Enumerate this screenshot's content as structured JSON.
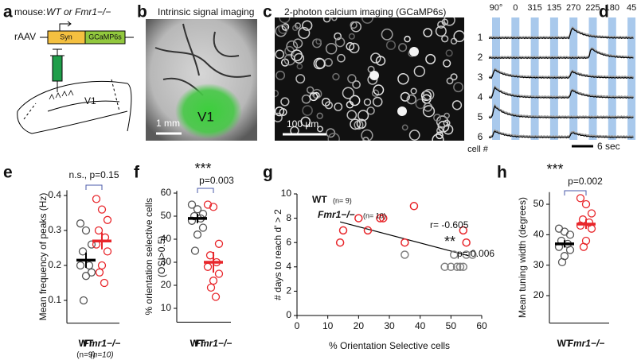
{
  "panel_labels": [
    "a",
    "b",
    "c",
    "d",
    "e",
    "f",
    "g",
    "h"
  ],
  "panel_a": {
    "mouse": "mouse:",
    "genotypes": "WT or Fmr1−/−",
    "vector": "rAAV",
    "promoter": "Syn",
    "gene": "GCaMP6s",
    "area": "V1"
  },
  "panel_b": {
    "title": "Intrinsic signal imaging",
    "scale": "1 mm",
    "area": "V1"
  },
  "panel_c": {
    "title": "2-photon calcium imaging (GCaMP6s)",
    "scale": "100 µm"
  },
  "panel_d": {
    "directions": [
      "90°",
      "0",
      "315",
      "135",
      "270",
      "225",
      "180",
      "45"
    ],
    "cells": [
      "1",
      "2",
      "3",
      "4",
      "5",
      "6"
    ],
    "cell_axis": "cell #",
    "scale": "6 sec"
  },
  "chart_data": [
    {
      "type": "dotplot",
      "ylabel": [
        "Mean frequency of peaks (Hz)"
      ],
      "ylim": [
        0.035,
        0.415
      ],
      "yticks": [
        0.1,
        0.2,
        0.3,
        0.4
      ],
      "categories": [
        "WT",
        "Fmr1−/−"
      ],
      "category_notes": [
        "(n=9)",
        "(n=10)"
      ],
      "annotation": "n.s., p=0.15",
      "groups": [
        {
          "color": "#555555",
          "values": [
            0.32,
            0.3,
            0.26,
            0.24,
            0.2,
            0.2,
            0.18,
            0.17,
            0.1
          ],
          "mean": 0.215,
          "sem": 0.022
        },
        {
          "color": "#e8262b",
          "values": [
            0.39,
            0.36,
            0.33,
            0.3,
            0.28,
            0.26,
            0.24,
            0.2,
            0.18,
            0.15
          ],
          "mean": 0.27,
          "sem": 0.024
        }
      ]
    },
    {
      "type": "dotplot",
      "ylabel": [
        "% orientation selective cells",
        "(OSI>0.5)"
      ],
      "ylim": [
        4,
        61
      ],
      "yticks": [
        10,
        20,
        30,
        40,
        50,
        60
      ],
      "categories": [
        "WT",
        "Fmr1−/−"
      ],
      "stars": "***",
      "annotation": "p=0.003",
      "groups": [
        {
          "color": "#555555",
          "values": [
            55,
            53,
            51,
            50,
            49,
            48,
            45,
            42,
            35
          ],
          "mean": 49,
          "sem": 2
        },
        {
          "color": "#e8262b",
          "values": [
            55,
            54,
            38,
            33,
            30,
            28,
            25,
            22,
            19,
            15
          ],
          "mean": 30,
          "sem": 4.5
        }
      ]
    },
    {
      "type": "scatter",
      "xlabel": "% Orientation Selective cells",
      "ylabel": [
        "# days to reach d' > 2"
      ],
      "xlim": [
        0,
        60
      ],
      "xticks": [
        0,
        10,
        20,
        30,
        40,
        50,
        60
      ],
      "ylim": [
        0,
        10
      ],
      "yticks": [
        0,
        2,
        4,
        6,
        8,
        10
      ],
      "series": [
        {
          "name": "WT",
          "note": "(n= 9)",
          "color": "#808080",
          "x": [
            35,
            48,
            50,
            51,
            52,
            53,
            54,
            55,
            57
          ],
          "values": [
            5,
            4,
            4,
            5,
            4,
            4,
            4,
            5,
            5
          ]
        },
        {
          "name": "Fmr1−/−",
          "note": "(n= 10)",
          "color": "#e8262b",
          "x": [
            14,
            15,
            20,
            23,
            27,
            28,
            35,
            38,
            54,
            55
          ],
          "values": [
            6,
            7,
            8,
            7,
            8,
            8,
            6,
            9,
            7,
            6
          ]
        }
      ],
      "fit": {
        "x": [
          14,
          56
        ],
        "values": [
          7.7,
          4.9
        ]
      },
      "annotations": [
        "r= -0.605",
        "**",
        "p= 0.006"
      ]
    },
    {
      "type": "dotplot",
      "ylabel": [
        "Mean tuning width (degrees)"
      ],
      "ylim": [
        11,
        54
      ],
      "yticks": [
        20,
        30,
        40,
        50
      ],
      "categories": [
        "WT",
        "Fmr1−/−"
      ],
      "stars": "***",
      "annotation": "p=0.002",
      "groups": [
        {
          "color": "#555555",
          "values": [
            42,
            41,
            40,
            38,
            37,
            36,
            35,
            33,
            31
          ],
          "mean": 37,
          "sem": 1.2
        },
        {
          "color": "#e8262b",
          "values": [
            52,
            50,
            47,
            45,
            44,
            43,
            42,
            38,
            36
          ],
          "mean": 43.5,
          "sem": 1.6
        }
      ]
    }
  ]
}
